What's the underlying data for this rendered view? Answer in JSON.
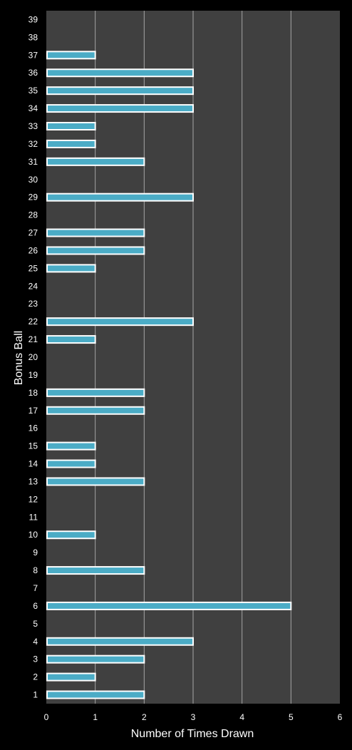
{
  "chart_data": {
    "type": "bar",
    "orientation": "horizontal",
    "xlabel": "Number of Times Drawn",
    "ylabel": "Bonus Ball",
    "xlim": [
      0,
      6
    ],
    "xticks": [
      "0",
      "1",
      "2",
      "3",
      "4",
      "5",
      "6"
    ],
    "grid": "vertical",
    "categories": [
      "1",
      "2",
      "3",
      "4",
      "5",
      "6",
      "7",
      "8",
      "9",
      "10",
      "11",
      "12",
      "13",
      "14",
      "15",
      "16",
      "17",
      "18",
      "19",
      "20",
      "21",
      "22",
      "23",
      "24",
      "25",
      "26",
      "27",
      "28",
      "29",
      "30",
      "31",
      "32",
      "33",
      "34",
      "35",
      "36",
      "37",
      "38",
      "39"
    ],
    "values": [
      2,
      1,
      2,
      3,
      0,
      5,
      0,
      2,
      0,
      1,
      0,
      0,
      2,
      1,
      1,
      0,
      2,
      2,
      0,
      0,
      1,
      3,
      0,
      0,
      1,
      2,
      2,
      0,
      3,
      0,
      2,
      1,
      1,
      3,
      3,
      3,
      1,
      0,
      0
    ]
  },
  "colors": {
    "background": "#000000",
    "plot_area": "#404040",
    "gridline": "#a6a6a6",
    "bar_fill": "#4bacc6",
    "bar_border": "#ffffff",
    "text": "#ffffff"
  }
}
